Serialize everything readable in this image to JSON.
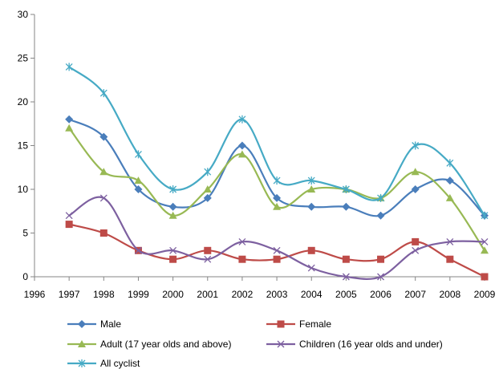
{
  "chart_data": {
    "type": "line",
    "title": "",
    "xlabel": "",
    "ylabel": "",
    "xlim": [
      1996,
      2009
    ],
    "ylim": [
      0,
      30
    ],
    "xticks": [
      1996,
      1997,
      1998,
      1999,
      2000,
      2001,
      2002,
      2003,
      2004,
      2005,
      2006,
      2007,
      2008,
      2009
    ],
    "yticks": [
      0,
      5,
      10,
      15,
      20,
      25,
      30
    ],
    "grid": false,
    "legend_position": "bottom",
    "x": [
      1997,
      1998,
      1999,
      2000,
      2001,
      2002,
      2003,
      2004,
      2005,
      2006,
      2007,
      2008,
      2009
    ],
    "series": [
      {
        "name": "Male",
        "color": "#4a7ebb",
        "marker": "diamond",
        "values": [
          18,
          16,
          10,
          8,
          9,
          15,
          9,
          8,
          8,
          7,
          10,
          11,
          7
        ]
      },
      {
        "name": "Female",
        "color": "#be4b48",
        "marker": "square",
        "values": [
          6,
          5,
          3,
          2,
          3,
          2,
          2,
          3,
          2,
          2,
          4,
          2,
          0
        ]
      },
      {
        "name": "Adult  (17 year olds and above)",
        "color": "#98b954",
        "marker": "triangle",
        "values": [
          17,
          12,
          11,
          7,
          10,
          14,
          8,
          10,
          10,
          9,
          12,
          9,
          3
        ]
      },
      {
        "name": "Children (16 year olds and under)",
        "color": "#7d60a0",
        "marker": "x",
        "values": [
          7,
          9,
          3,
          3,
          2,
          4,
          3,
          1,
          0,
          0,
          3,
          4,
          4
        ]
      },
      {
        "name": "All cyclist",
        "color": "#46aac5",
        "marker": "star",
        "values": [
          24,
          21,
          14,
          10,
          12,
          18,
          11,
          11,
          10,
          9,
          15,
          13,
          7
        ]
      }
    ]
  }
}
